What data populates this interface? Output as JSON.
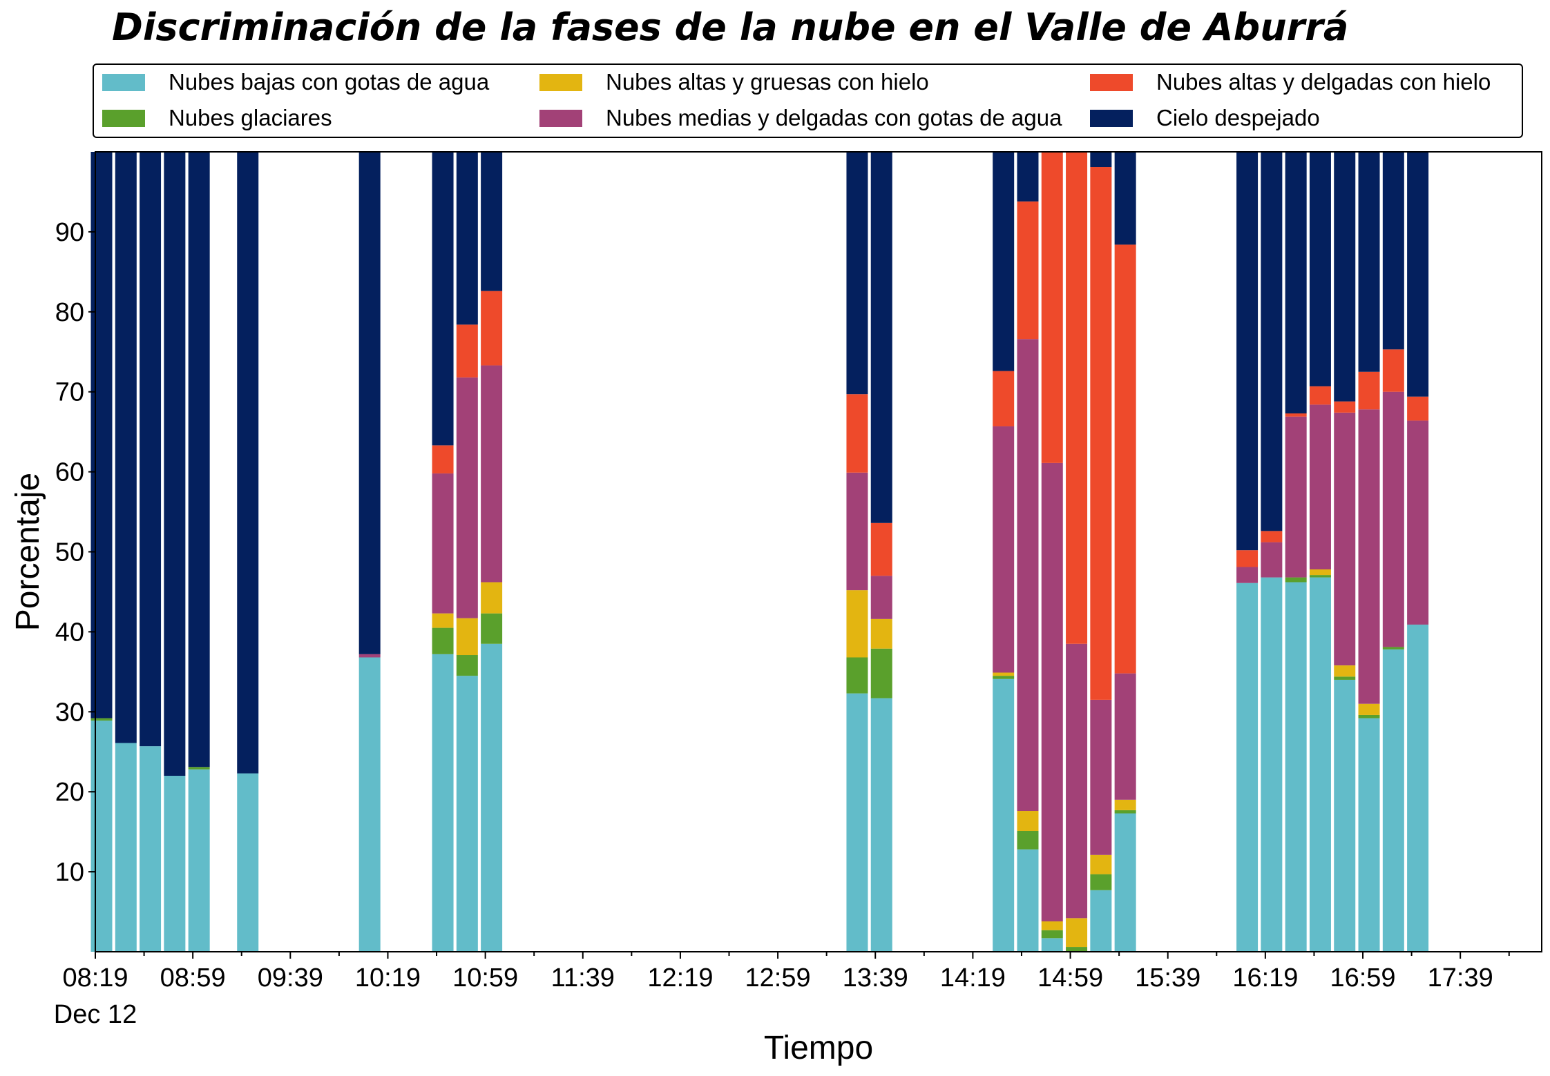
{
  "chart_data": {
    "type": "bar",
    "stacked": true,
    "title": "Discriminación de la fases de la nube en el Valle de Aburrá",
    "xlabel": "Tiempo",
    "ylabel": "Porcentaje",
    "ylim": [
      0,
      100
    ],
    "yticks": [
      10,
      20,
      30,
      40,
      50,
      60,
      70,
      80,
      90
    ],
    "x_tick_labels": [
      "08:19",
      "08:59",
      "09:39",
      "10:19",
      "10:59",
      "11:39",
      "12:19",
      "12:59",
      "13:39",
      "14:19",
      "14:59",
      "15:39",
      "16:19",
      "16:59",
      "17:39"
    ],
    "x_date_label": "Dec 12",
    "legend_position": "top",
    "x": [
      "08:19",
      "08:29",
      "08:39",
      "08:49",
      "08:59",
      "09:19",
      "10:09",
      "10:39",
      "10:49",
      "10:59",
      "13:29",
      "13:39",
      "14:29",
      "14:39",
      "14:49",
      "14:59",
      "15:09",
      "15:19",
      "16:09",
      "16:19",
      "16:29",
      "16:39",
      "16:49",
      "16:59",
      "17:09",
      "17:19"
    ],
    "series": [
      {
        "name": "Nubes bajas con gotas de agua",
        "color": "#62bcc9",
        "values": [
          28.9,
          26.1,
          25.7,
          22.0,
          22.8,
          22.3,
          36.8,
          37.2,
          34.5,
          38.5,
          32.3,
          31.7,
          34.1,
          12.8,
          1.7,
          0.0,
          7.7,
          17.3,
          46.1,
          46.8,
          46.2,
          46.8,
          34.0,
          29.2,
          37.8,
          40.9
        ]
      },
      {
        "name": "Nubes glaciares",
        "color": "#5aa02c",
        "values": [
          0.3,
          0,
          0,
          0,
          0.3,
          0,
          0,
          3.3,
          2.6,
          3.8,
          4.5,
          6.2,
          0.4,
          2.3,
          1.0,
          0.6,
          2.0,
          0.4,
          0,
          0,
          0.6,
          0.3,
          0.4,
          0.4,
          0.3,
          0
        ]
      },
      {
        "name": "Nubes altas y gruesas con hielo",
        "color": "#e3b511",
        "values": [
          0,
          0,
          0,
          0,
          0,
          0,
          0,
          1.8,
          4.6,
          3.9,
          8.4,
          3.7,
          0.4,
          2.5,
          1.1,
          3.6,
          2.4,
          1.3,
          0,
          0,
          0,
          0.7,
          1.4,
          1.4,
          0,
          0
        ]
      },
      {
        "name": "Nubes medias y delgadas con gotas de agua",
        "color": "#a24177",
        "values": [
          0,
          0,
          0,
          0,
          0,
          0,
          0.4,
          17.5,
          30.1,
          27.1,
          14.7,
          5.4,
          30.8,
          59.0,
          57.3,
          34.3,
          19.4,
          15.8,
          2.0,
          4.4,
          20.1,
          20.6,
          31.6,
          36.8,
          31.9,
          25.5
        ]
      },
      {
        "name": "Nubes altas y delgadas con hielo",
        "color": "#ee4a2b",
        "values": [
          0,
          0,
          0,
          0,
          0,
          0,
          0,
          3.5,
          6.6,
          9.3,
          9.8,
          6.6,
          6.9,
          17.2,
          38.9,
          61.5,
          66.6,
          53.6,
          2.1,
          1.4,
          0.4,
          2.3,
          1.4,
          4.7,
          5.3,
          3.0
        ]
      },
      {
        "name": "Cielo despejado",
        "color": "#04205e",
        "values": [
          70.8,
          73.9,
          74.3,
          78.0,
          76.9,
          77.7,
          62.8,
          36.7,
          21.6,
          17.4,
          30.3,
          46.4,
          27.4,
          6.2,
          0.7,
          0.0,
          2.4,
          11.6,
          49.8,
          47.4,
          32.7,
          29.3,
          31.2,
          27.5,
          24.7,
          30.6
        ]
      }
    ]
  }
}
